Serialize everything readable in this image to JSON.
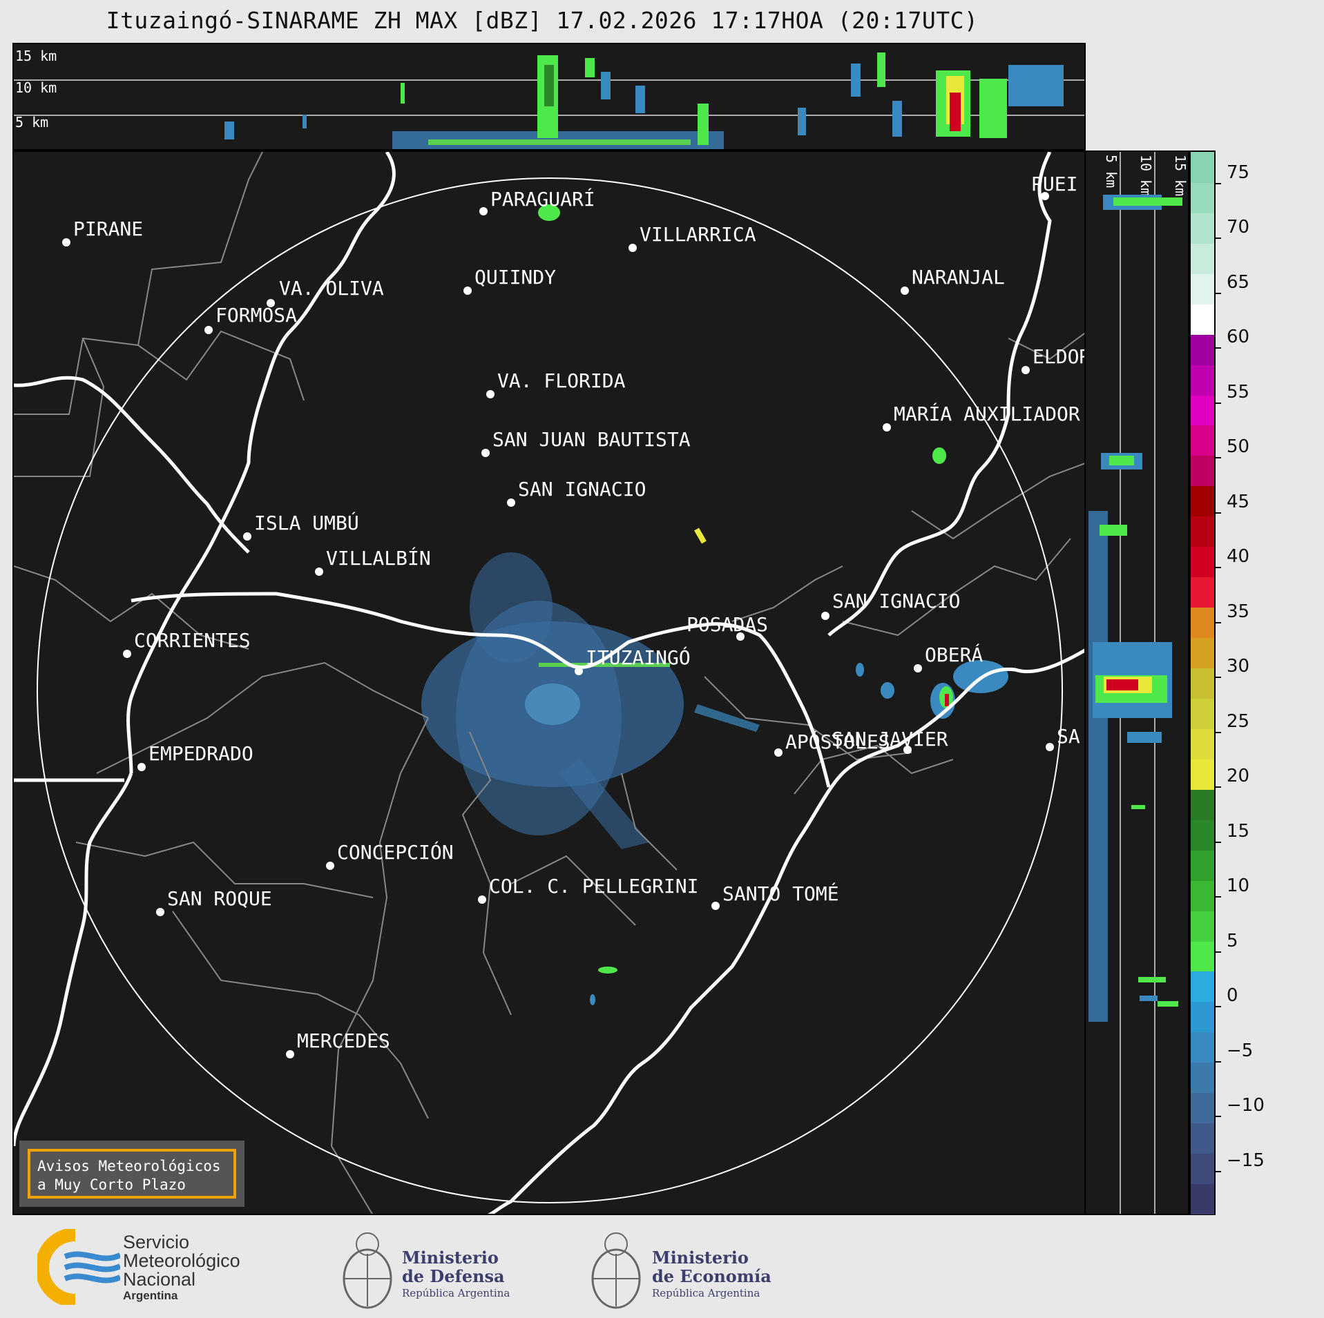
{
  "title": "Ituzaingó-SINARAME ZH MAX [dBZ] 17.02.2026 17:17HOA (20:17UTC)",
  "top_panel": {
    "height_labels": [
      "15 km",
      "10 km",
      "5 km"
    ]
  },
  "side_panel": {
    "height_labels": [
      "5 km",
      "10 km",
      "15 km"
    ]
  },
  "colorbar": {
    "unit": "dBZ",
    "ticks": [
      "75",
      "70",
      "65",
      "60",
      "55",
      "50",
      "45",
      "40",
      "35",
      "30",
      "25",
      "20",
      "15",
      "10",
      "5",
      "0",
      "−5",
      "−10",
      "−15"
    ],
    "range": [
      -20,
      77
    ],
    "colors": [
      "#3a3a6a",
      "#3d4a7a",
      "#3f5a8a",
      "#3f6a9a",
      "#3d7aac",
      "#3a8ac0",
      "#2c9ad0",
      "#2aacde",
      "#4ee84a",
      "#44d040",
      "#3ab834",
      "#32a02e",
      "#2a8828",
      "#2a7a26",
      "#e8e83a",
      "#dcdc3a",
      "#cfcf3a",
      "#c8c030",
      "#d4a020",
      "#e08820",
      "#e81830",
      "#d00020",
      "#b80010",
      "#a00000",
      "#c00060",
      "#d8008a",
      "#e000c0",
      "#c000b0",
      "#a000a0",
      "#ffffff",
      "#e0f4ec",
      "#c8ecdc",
      "#b0e4cc",
      "#98dcbc",
      "#88d4b0"
    ]
  },
  "cities": [
    {
      "name": "PARAGUARÍ"
    },
    {
      "name": "PIRANE"
    },
    {
      "name": "VILLARRICA"
    },
    {
      "name": "QUIINDY"
    },
    {
      "name": "VA. OLIVA"
    },
    {
      "name": "NARANJAL"
    },
    {
      "name": "FORMOSA"
    },
    {
      "name": "VA. FLORIDA"
    },
    {
      "name": "ELDOR"
    },
    {
      "name": "MARÍA AUXILIADOR"
    },
    {
      "name": "SAN JUAN BAUTISTA"
    },
    {
      "name": "SAN IGNACIO"
    },
    {
      "name": "ISLA UMBÚ"
    },
    {
      "name": "VILLALBÍN"
    },
    {
      "name": "SAN IGNACIO"
    },
    {
      "name": "POSADAS"
    },
    {
      "name": "CORRIENTES"
    },
    {
      "name": "ITUZAINGÓ"
    },
    {
      "name": "OBERÁ"
    },
    {
      "name": "EMPEDRADO"
    },
    {
      "name": "APÓSTOLES"
    },
    {
      "name": "SAN JAVIER"
    },
    {
      "name": "SA"
    },
    {
      "name": "PUEI"
    },
    {
      "name": "CONCEPCIÓN"
    },
    {
      "name": "COL. C. PELLEGRINI"
    },
    {
      "name": "SANTO TOMÉ"
    },
    {
      "name": "SAN ROQUE"
    },
    {
      "name": "MERCEDES"
    }
  ],
  "aviso": {
    "line1": "Avisos Meteorológicos",
    "line2": "a Muy Corto Plazo"
  },
  "footer": {
    "smn": {
      "line1": "Servicio",
      "line2": "Meteorológico",
      "line3": "Nacional",
      "line4": "Argentina"
    },
    "defensa": {
      "line1": "Ministerio",
      "line2": "de Defensa",
      "line3": "República Argentina"
    },
    "economia": {
      "line1": "Ministerio",
      "line2": "de Economía",
      "line3": "República Argentina"
    }
  }
}
